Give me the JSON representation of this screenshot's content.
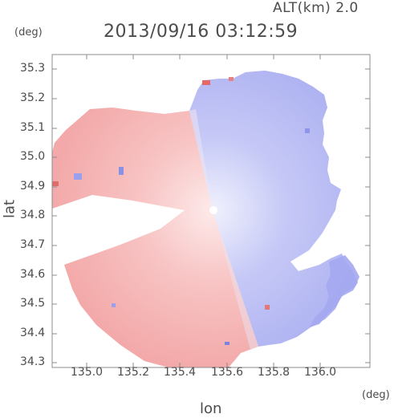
{
  "header": {
    "altitude_label": "ALT(km) 2.0",
    "timestamp": "2013/09/16 03:12:59"
  },
  "axes": {
    "x_title": "lon",
    "y_title": "lat",
    "x_unit": "(deg)",
    "y_unit": "(deg)",
    "x_ticks": [
      "135.0",
      "135.2",
      "135.4",
      "135.6",
      "135.8",
      "136.0"
    ],
    "y_ticks": [
      "35.3",
      "35.2",
      "35.1",
      "35.0",
      "34.9",
      "34.8",
      "34.7",
      "34.6",
      "34.5",
      "34.4",
      "34.3"
    ]
  },
  "colors": {
    "receding": "#f4a7a7",
    "approaching": "#a9aef2",
    "frame": "#8c8c8c"
  }
}
